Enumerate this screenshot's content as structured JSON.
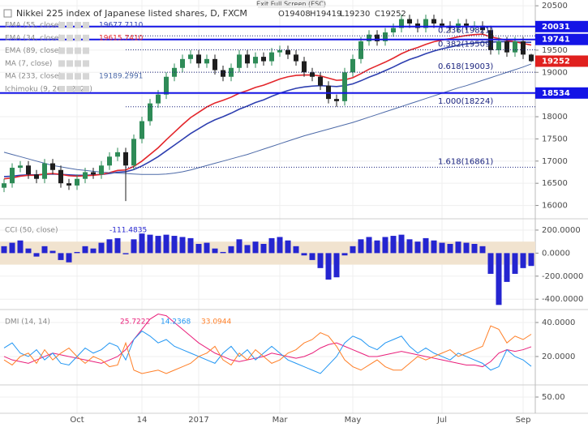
{
  "overlay": {
    "text": "Exit Full Screen (ESC)"
  },
  "chart_data": [
    {
      "type": "candlestick",
      "title": "Nikkei 225 index of Japanese listed shares, D, FXCM",
      "ohlc_header": [
        "O19408",
        "H19419",
        "L19230",
        "C19252"
      ],
      "categories": [
        null,
        null,
        null,
        null,
        null,
        null,
        null,
        null,
        null,
        "Oct",
        null,
        null,
        null,
        null,
        null,
        null,
        null,
        "14",
        null,
        null,
        null,
        null,
        null,
        null,
        "2017",
        null,
        null,
        null,
        null,
        null,
        null,
        null,
        null,
        null,
        "Mar",
        null,
        null,
        null,
        null,
        null,
        null,
        null,
        null,
        "May",
        null,
        null,
        null,
        null,
        null,
        null,
        null,
        null,
        null,
        null,
        "Jul",
        null,
        null,
        null,
        null,
        null,
        null,
        null,
        null,
        null,
        "Sep",
        null
      ],
      "open": [
        16400,
        16500,
        16850,
        16900,
        16700,
        16600,
        16950,
        16800,
        16500,
        16450,
        16600,
        16750,
        16700,
        16900,
        17100,
        17200,
        16900,
        17500,
        17900,
        18300,
        18500,
        18900,
        19100,
        19300,
        19400,
        19200,
        19300,
        19050,
        18900,
        19100,
        19400,
        19200,
        19350,
        19250,
        19450,
        19500,
        19400,
        19250,
        19000,
        18900,
        18700,
        18400,
        18350,
        19000,
        19300,
        19700,
        19850,
        19700,
        19900,
        20000,
        20200,
        20100,
        20000,
        20200,
        20100,
        20050,
        20000,
        20100,
        20050,
        20050,
        19950,
        19500,
        19700,
        19450,
        19700,
        19400
      ],
      "high": [
        16600,
        16950,
        17000,
        17000,
        16800,
        17050,
        17050,
        16900,
        16600,
        16700,
        16850,
        16850,
        17000,
        17200,
        17300,
        17300,
        17600,
        18000,
        18400,
        18600,
        19000,
        19200,
        19400,
        19500,
        19500,
        19400,
        19400,
        19150,
        19200,
        19500,
        19500,
        19450,
        19450,
        19550,
        19600,
        19600,
        19500,
        19350,
        19100,
        19000,
        18800,
        18500,
        19100,
        19400,
        19800,
        19950,
        19950,
        20000,
        20100,
        20300,
        20300,
        20200,
        20300,
        20300,
        20200,
        20150,
        20200,
        20200,
        20150,
        20150,
        20050,
        19800,
        19800,
        19800,
        19800,
        19419
      ],
      "low": [
        16300,
        16400,
        16750,
        16600,
        16500,
        16500,
        16700,
        16400,
        16350,
        16350,
        16500,
        16600,
        16600,
        16800,
        17000,
        16100,
        16800,
        17400,
        17800,
        18200,
        18400,
        18800,
        19000,
        19200,
        19100,
        19100,
        18950,
        18800,
        18800,
        19000,
        19100,
        19100,
        19150,
        19150,
        19350,
        19300,
        19150,
        18900,
        18800,
        18600,
        18300,
        18224,
        18250,
        18900,
        19200,
        19600,
        19600,
        19600,
        19800,
        19900,
        20000,
        19900,
        19900,
        20000,
        19950,
        19900,
        19900,
        19950,
        19950,
        19850,
        19400,
        19400,
        19350,
        19350,
        19300,
        19230
      ],
      "close": [
        16500,
        16850,
        16900,
        16700,
        16600,
        16950,
        16800,
        16500,
        16450,
        16600,
        16750,
        16700,
        16900,
        17100,
        17200,
        16900,
        17500,
        17900,
        18300,
        18500,
        18900,
        19100,
        19300,
        19400,
        19200,
        19300,
        19050,
        18900,
        19100,
        19400,
        19200,
        19350,
        19250,
        19450,
        19500,
        19400,
        19250,
        19000,
        18900,
        18700,
        18400,
        18350,
        19000,
        19300,
        19700,
        19850,
        19700,
        19900,
        20000,
        20200,
        20100,
        20000,
        20200,
        20100,
        20050,
        20000,
        20100,
        20050,
        20050,
        19950,
        19500,
        19700,
        19450,
        19700,
        19400,
        19252
      ],
      "up_color": "#2e8b57",
      "down_color": "#1e1e1e",
      "last_price_color": "#e0201e",
      "series": [
        {
          "name": "EMA (55, close)",
          "value_label": "19677.7110",
          "color": "#2e3fb0",
          "values": [
            16650,
            16660,
            16680,
            16690,
            16690,
            16700,
            16710,
            16700,
            16690,
            16680,
            16680,
            16690,
            16700,
            16720,
            16750,
            16760,
            16810,
            16890,
            16990,
            17100,
            17230,
            17360,
            17490,
            17620,
            17730,
            17840,
            17930,
            18000,
            18080,
            18170,
            18240,
            18320,
            18380,
            18460,
            18530,
            18590,
            18640,
            18670,
            18690,
            18700,
            18690,
            18680,
            18700,
            18740,
            18810,
            18890,
            18960,
            19040,
            19120,
            19210,
            19290,
            19350,
            19420,
            19480,
            19530,
            19570,
            19610,
            19640,
            19660,
            19680,
            19680,
            19690,
            19690,
            19690,
            19680,
            19678
          ]
        },
        {
          "name": "EMA (34, close)",
          "value_label": "19615.7410",
          "color": "#e3262b",
          "values": [
            16600,
            16620,
            16660,
            16680,
            16680,
            16710,
            16720,
            16700,
            16670,
            16660,
            16670,
            16680,
            16700,
            16740,
            16790,
            16800,
            16880,
            17000,
            17150,
            17300,
            17480,
            17650,
            17820,
            17980,
            18100,
            18220,
            18310,
            18370,
            18440,
            18530,
            18590,
            18660,
            18710,
            18780,
            18850,
            18900,
            18930,
            18940,
            18940,
            18920,
            18870,
            18820,
            18830,
            18880,
            18970,
            19070,
            19150,
            19230,
            19320,
            19420,
            19500,
            19560,
            19630,
            19690,
            19730,
            19760,
            19800,
            19830,
            19850,
            19860,
            19800,
            19760,
            19720,
            19690,
            19650,
            19616
          ]
        },
        {
          "name": "EMA (89, close)",
          "color": "#9e9e9e"
        },
        {
          "name": "MA (7, close)",
          "color": "#9e9e9e"
        },
        {
          "name": "MA (233, close)",
          "value_label": "19189.2991",
          "color": "#4d6aa8",
          "values": [
            17200,
            17150,
            17100,
            17050,
            17000,
            16950,
            16900,
            16870,
            16840,
            16810,
            16790,
            16770,
            16750,
            16740,
            16730,
            16720,
            16710,
            16700,
            16700,
            16700,
            16710,
            16730,
            16760,
            16800,
            16850,
            16900,
            16950,
            17000,
            17050,
            17100,
            17150,
            17210,
            17270,
            17330,
            17390,
            17450,
            17510,
            17570,
            17620,
            17670,
            17720,
            17770,
            17820,
            17870,
            17930,
            17990,
            18050,
            18110,
            18170,
            18230,
            18290,
            18350,
            18410,
            18470,
            18530,
            18590,
            18650,
            18700,
            18760,
            18820,
            18880,
            18940,
            19000,
            19060,
            19120,
            19189
          ]
        },
        {
          "name": "Ichimoku (9, 26, 52, 26)",
          "color": "#9e9e9e"
        }
      ],
      "hlines": [
        20031,
        19741,
        18534
      ],
      "hline_color": "#1414e6",
      "fib": [
        {
          "label": "0.236(19821)",
          "value": 19821
        },
        {
          "label": "0.382(19509)",
          "value": 19509
        },
        {
          "label": "0.618(19003)",
          "value": 19003
        },
        {
          "label": "1.000(18224)",
          "value": 18224
        },
        {
          "label": "1.618(16861)",
          "value": 16861
        }
      ],
      "fib_color": "#1a237e",
      "ylim": [
        15700,
        20630
      ],
      "yticks": [
        16000,
        16500,
        17000,
        17500,
        18000,
        18500,
        19000,
        19500,
        20000,
        20500
      ]
    },
    {
      "type": "bar",
      "legend": "CCI (50, close)",
      "value_label": "-111.4835",
      "color": "#2525d0",
      "band": [
        -100,
        100
      ],
      "band_color": "#f1e3cf",
      "values": [
        60,
        90,
        110,
        40,
        -30,
        60,
        20,
        -60,
        -80,
        10,
        60,
        40,
        90,
        120,
        130,
        -10,
        120,
        170,
        160,
        150,
        160,
        150,
        140,
        130,
        80,
        90,
        40,
        10,
        60,
        120,
        70,
        100,
        80,
        130,
        140,
        110,
        60,
        -20,
        -60,
        -130,
        -230,
        -210,
        -20,
        60,
        120,
        140,
        110,
        140,
        150,
        160,
        120,
        100,
        130,
        110,
        90,
        80,
        100,
        90,
        80,
        60,
        -180,
        -450,
        -250,
        -180,
        -130,
        -111.4835
      ],
      "ylim": [
        -490,
        263
      ],
      "yticks": [
        {
          "value": 200,
          "label": "200.0000"
        },
        {
          "value": 0,
          "label": "0.0000"
        },
        {
          "value": -200,
          "label": "-200.0000"
        },
        {
          "value": -400,
          "label": "-400.0000"
        }
      ]
    },
    {
      "type": "line",
      "legend": "DMI (14, 14)",
      "series": [
        {
          "value_label": "25.7222",
          "color": "#e91e7a",
          "values": [
            20,
            18,
            17,
            16,
            18,
            20,
            22,
            21,
            20,
            19,
            18,
            17,
            16,
            18,
            20,
            24,
            30,
            36,
            42,
            45,
            44,
            40,
            36,
            32,
            28,
            25,
            22,
            20,
            18,
            17,
            18,
            19,
            20,
            22,
            21,
            20,
            19,
            20,
            22,
            25,
            27,
            28,
            26,
            24,
            22,
            20,
            20,
            21,
            22,
            23,
            22,
            21,
            20,
            19,
            18,
            17,
            16,
            15,
            15,
            14,
            17,
            22,
            24,
            23,
            24,
            25.7222
          ]
        },
        {
          "value_label": "14.2368",
          "color": "#2196f3",
          "values": [
            25,
            28,
            22,
            20,
            24,
            18,
            22,
            16,
            15,
            20,
            25,
            22,
            24,
            28,
            26,
            18,
            30,
            35,
            32,
            28,
            30,
            26,
            24,
            22,
            20,
            18,
            16,
            22,
            26,
            20,
            24,
            18,
            22,
            26,
            22,
            18,
            16,
            14,
            12,
            10,
            15,
            20,
            28,
            32,
            30,
            26,
            24,
            28,
            30,
            32,
            26,
            22,
            25,
            22,
            20,
            18,
            22,
            20,
            18,
            16,
            12,
            14,
            24,
            20,
            18,
            14.2368
          ]
        },
        {
          "value_label": "33.0944",
          "color": "#ff7f27",
          "values": [
            18,
            15,
            20,
            22,
            16,
            24,
            18,
            22,
            25,
            20,
            16,
            20,
            18,
            14,
            15,
            28,
            12,
            10,
            11,
            12,
            10,
            12,
            14,
            16,
            20,
            22,
            26,
            18,
            15,
            22,
            18,
            24,
            20,
            16,
            18,
            22,
            24,
            28,
            30,
            34,
            32,
            26,
            18,
            14,
            12,
            15,
            18,
            14,
            12,
            12,
            16,
            20,
            18,
            20,
            22,
            24,
            20,
            22,
            24,
            26,
            38,
            36,
            28,
            32,
            30,
            33.0944
          ]
        }
      ],
      "ylim": [
        3.3,
        46.2
      ],
      "yticks": [
        {
          "value": 40,
          "label": "40.0000"
        },
        {
          "value": 20,
          "label": "20.0000"
        }
      ]
    },
    {
      "type": "line",
      "series": [],
      "ylim": [
        30,
        65
      ],
      "yticks": [
        {
          "value": 50,
          "label": "50.00"
        }
      ]
    }
  ]
}
